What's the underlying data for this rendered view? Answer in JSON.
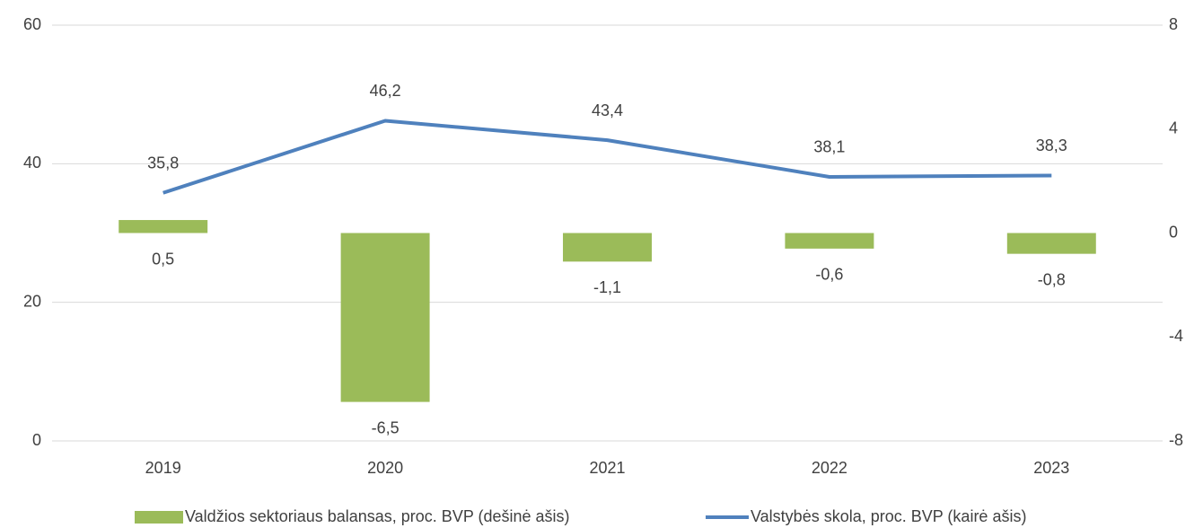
{
  "chart_data": {
    "type": "combo",
    "categories": [
      "2019",
      "2020",
      "2021",
      "2022",
      "2023"
    ],
    "series": [
      {
        "name": "Valdžios sektoriaus balansas, proc. BVP (dešinė ašis)",
        "type": "bar",
        "axis": "y2",
        "color": "#9bbb59",
        "values": [
          0.5,
          -6.5,
          -1.1,
          -0.6,
          -0.8
        ],
        "value_labels": [
          "0,5",
          "-6,5",
          "-1,1",
          "-0,6",
          "-0,8"
        ]
      },
      {
        "name": "Valstybės skola, proc. BVP (kairė ašis)",
        "type": "line",
        "axis": "y",
        "color": "#4f81bd",
        "values": [
          35.8,
          46.2,
          43.4,
          38.1,
          38.3
        ],
        "value_labels": [
          "35,8",
          "46,2",
          "43,4",
          "38,1",
          "38,3"
        ]
      }
    ],
    "ylim": [
      0,
      60
    ],
    "yticks": [
      0,
      20,
      40,
      60
    ],
    "y2lim": [
      -8,
      8
    ],
    "y2ticks": [
      -8,
      -4,
      0,
      4,
      8
    ],
    "grid": true
  }
}
